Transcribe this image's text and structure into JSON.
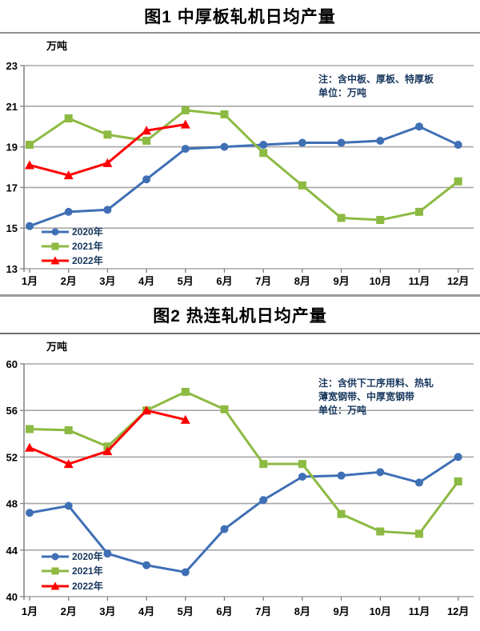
{
  "chart_data": [
    {
      "type": "line",
      "title": "图1  中厚板轧机日均产量",
      "ylabel": "万吨",
      "notes": [
        "注：含中板、厚板、特厚板",
        "单位：万吨"
      ],
      "categories": [
        "1月",
        "2月",
        "3月",
        "4月",
        "5月",
        "6月",
        "7月",
        "8月",
        "9月",
        "10月",
        "11月",
        "12月"
      ],
      "ylim": [
        13,
        23
      ],
      "yticks": [
        13,
        15,
        17,
        19,
        21,
        23
      ],
      "grid": true,
      "legend_position": "inside-bottom-left",
      "series": [
        {
          "name": "2020年",
          "color": "#3F6FB5",
          "marker": "circle",
          "values": [
            15.1,
            15.8,
            15.9,
            17.4,
            18.9,
            19.0,
            19.1,
            19.2,
            19.2,
            19.3,
            20.0,
            19.1
          ]
        },
        {
          "name": "2021年",
          "color": "#8CBA42",
          "marker": "square",
          "values": [
            19.1,
            20.4,
            19.6,
            19.3,
            20.8,
            20.6,
            18.7,
            17.1,
            15.5,
            15.4,
            15.8,
            17.3
          ]
        },
        {
          "name": "2022年",
          "color": "#FE0000",
          "marker": "triangle",
          "values": [
            18.1,
            17.6,
            18.2,
            19.8,
            20.1,
            null,
            null,
            null,
            null,
            null,
            null,
            null
          ]
        }
      ]
    },
    {
      "type": "line",
      "title": "图2  热连轧机日均产量",
      "ylabel": "万吨",
      "notes": [
        "注：含供下工序用料、热轧",
        "薄宽钢带、中厚宽钢带",
        "单位：万吨"
      ],
      "categories": [
        "1月",
        "2月",
        "3月",
        "4月",
        "5月",
        "6月",
        "7月",
        "8月",
        "9月",
        "10月",
        "11月",
        "12月"
      ],
      "ylim": [
        40,
        60
      ],
      "yticks": [
        40,
        44,
        48,
        52,
        56,
        60
      ],
      "grid": true,
      "legend_position": "inside-bottom-left",
      "series": [
        {
          "name": "2020年",
          "color": "#3F6FB5",
          "marker": "circle",
          "values": [
            47.2,
            47.8,
            43.7,
            42.7,
            42.1,
            45.8,
            48.3,
            50.3,
            50.4,
            50.7,
            49.8,
            52.0
          ]
        },
        {
          "name": "2021年",
          "color": "#8CBA42",
          "marker": "square",
          "values": [
            54.4,
            54.3,
            52.9,
            56.0,
            57.6,
            56.1,
            51.4,
            51.4,
            47.1,
            45.6,
            45.4,
            49.9
          ]
        },
        {
          "name": "2022年",
          "color": "#FE0000",
          "marker": "triangle",
          "values": [
            52.8,
            51.4,
            52.5,
            56.0,
            55.2,
            null,
            null,
            null,
            null,
            null,
            null,
            null
          ]
        }
      ]
    }
  ],
  "style_colors": {
    "gridline": "#A6A6A6",
    "axis": "#808080",
    "tick_label": "#000000",
    "note_text": "#17375D",
    "legend_text": "#17375D"
  }
}
